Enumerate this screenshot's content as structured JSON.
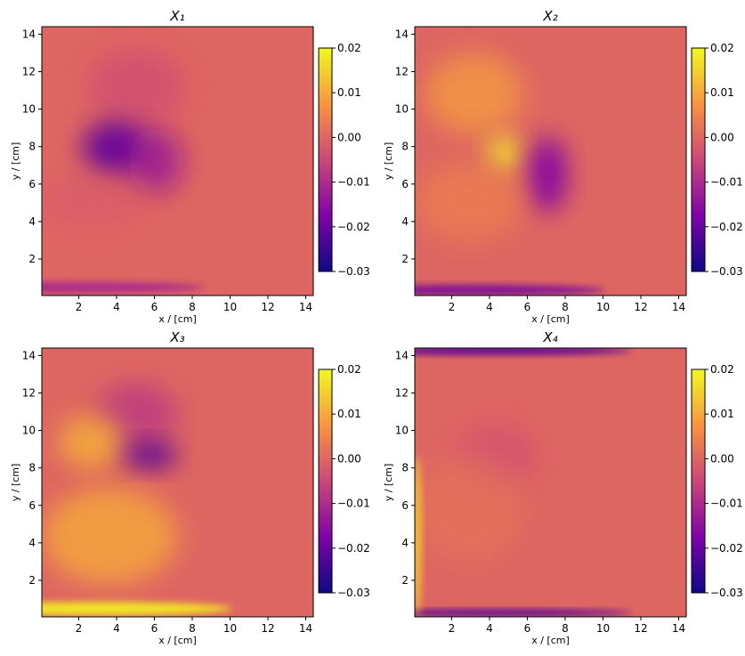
{
  "chart_data": [
    {
      "type": "heatmap",
      "title": "X₁",
      "xlabel": "x / [cm]",
      "ylabel": "y / [cm]",
      "xlim": [
        0.05,
        14.4
      ],
      "ylim": [
        0.05,
        14.4
      ],
      "xticks": [
        2,
        4,
        6,
        8,
        10,
        12,
        14
      ],
      "yticks": [
        2,
        4,
        6,
        8,
        10,
        12,
        14
      ],
      "colormap": "plasma",
      "clim": [
        -0.03,
        0.02
      ],
      "cticks": [
        0.02,
        0.01,
        {
          "value": 0,
          "label": "0.00"
        },
        {
          "value": -0.01,
          "label": "−0.01"
        },
        {
          "value": -0.02,
          "label": "−0.02"
        },
        {
          "value": -0.03,
          "label": "−0.03"
        }
      ]
    },
    {
      "type": "heatmap",
      "title": "X₂",
      "xlabel": "x / [cm]",
      "ylabel": "y / [cm]",
      "xlim": [
        0.05,
        14.4
      ],
      "ylim": [
        0.05,
        14.4
      ],
      "xticks": [
        2,
        4,
        6,
        8,
        10,
        12,
        14
      ],
      "yticks": [
        2,
        4,
        6,
        8,
        10,
        12,
        14
      ],
      "colormap": "plasma",
      "clim": [
        -0.03,
        0.02
      ],
      "cticks": [
        0.02,
        0.01,
        {
          "value": 0,
          "label": "0.00"
        },
        {
          "value": -0.01,
          "label": "−0.01"
        },
        {
          "value": -0.02,
          "label": "−0.02"
        },
        {
          "value": -0.03,
          "label": "−0.03"
        }
      ]
    },
    {
      "type": "heatmap",
      "title": "X₃",
      "xlabel": "x / [cm]",
      "ylabel": "y / [cm]",
      "xlim": [
        0.05,
        14.4
      ],
      "ylim": [
        0.05,
        14.4
      ],
      "xticks": [
        2,
        4,
        6,
        8,
        10,
        12,
        14
      ],
      "yticks": [
        2,
        4,
        6,
        8,
        10,
        12,
        14
      ],
      "colormap": "plasma",
      "clim": [
        -0.03,
        0.02
      ],
      "cticks": [
        0.02,
        0.01,
        {
          "value": 0,
          "label": "0.00"
        },
        {
          "value": -0.01,
          "label": "−0.01"
        },
        {
          "value": -0.02,
          "label": "−0.02"
        },
        {
          "value": -0.03,
          "label": "−0.03"
        }
      ]
    },
    {
      "type": "heatmap",
      "title": "X₄",
      "xlabel": "x / [cm]",
      "ylabel": "y / [cm]",
      "xlim": [
        0.05,
        14.4
      ],
      "ylim": [
        0.05,
        14.4
      ],
      "xticks": [
        2,
        4,
        6,
        8,
        10,
        12,
        14
      ],
      "yticks": [
        2,
        4,
        6,
        8,
        10,
        12,
        14
      ],
      "colormap": "plasma",
      "clim": [
        -0.03,
        0.02
      ],
      "cticks": [
        0.02,
        0.01,
        {
          "value": 0,
          "label": "0.00"
        },
        {
          "value": -0.01,
          "label": "−0.01"
        },
        {
          "value": -0.02,
          "label": "−0.02"
        },
        {
          "value": -0.03,
          "label": "−0.03"
        }
      ]
    }
  ]
}
